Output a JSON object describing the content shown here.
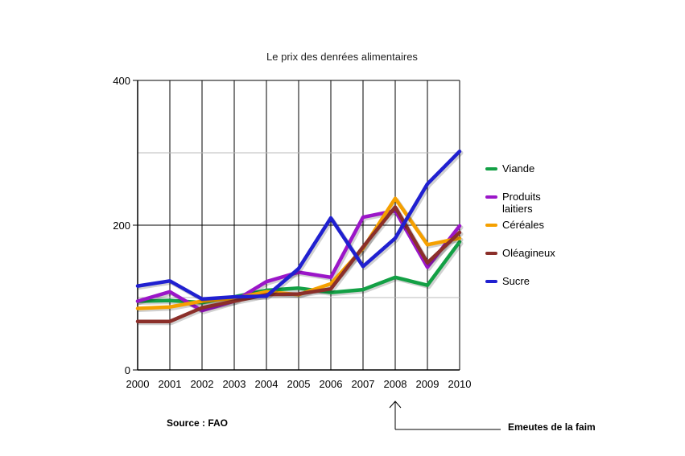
{
  "chart_data": {
    "type": "line",
    "title": "Le prix des denrées alimentaires",
    "x": [
      "2000",
      "2001",
      "2002",
      "2003",
      "2004",
      "2005",
      "2006",
      "2007",
      "2008",
      "2009",
      "2010"
    ],
    "ylim": [
      0,
      400
    ],
    "yticks": [
      "0",
      "200",
      "400"
    ],
    "grid": true,
    "legend_position": "right",
    "series": [
      {
        "name": "Viande",
        "color": "#13a045",
        "values": [
          95,
          96,
          93,
          101,
          110,
          113,
          107,
          111,
          128,
          117,
          177
        ]
      },
      {
        "name": "Produits laitiers",
        "color": "#9b16c8",
        "values": [
          95,
          108,
          82,
          95,
          122,
          135,
          128,
          211,
          220,
          142,
          199
        ]
      },
      {
        "name": "Céréales",
        "color": "#f5a000",
        "values": [
          85,
          87,
          95,
          99,
          108,
          104,
          119,
          168,
          237,
          173,
          182
        ]
      },
      {
        "name": "Oléagineux",
        "color": "#8b2f2a",
        "values": [
          67,
          67,
          86,
          95,
          104,
          105,
          112,
          170,
          225,
          148,
          190
        ]
      },
      {
        "name": "Sucre",
        "color": "#2020d0",
        "values": [
          116,
          123,
          98,
          101,
          102,
          140,
          210,
          143,
          182,
          257,
          302
        ]
      }
    ]
  },
  "source": "Source : FAO",
  "annotation": "Emeutes de la faim"
}
